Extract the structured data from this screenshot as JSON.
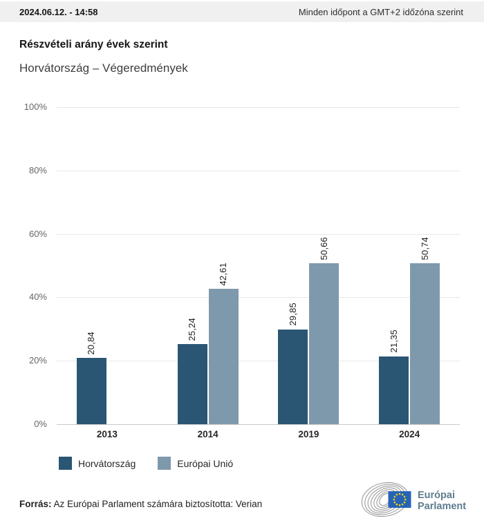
{
  "topbar": {
    "datetime": "2024.06.12. - 14:58",
    "timezone_note": "Minden időpont a GMT+2 időzóna szerint"
  },
  "header": {
    "title": "Részvételi arány évek szerint",
    "subtitle": "Horvátország – Végeredmények"
  },
  "chart_data": {
    "type": "bar",
    "title": "Részvételi arány évek szerint",
    "subtitle": "Horvátország – Végeredmények",
    "categories": [
      "2013",
      "2014",
      "2019",
      "2024"
    ],
    "series": [
      {
        "name": "Horvátország",
        "color": "#2a5674",
        "values": [
          20.84,
          25.24,
          29.85,
          21.35
        ],
        "labels": [
          "20,84",
          "25,24",
          "29,85",
          "21,35"
        ]
      },
      {
        "name": "Európai Unió",
        "color": "#7f99ac",
        "values": [
          null,
          42.61,
          50.66,
          50.74
        ],
        "labels": [
          null,
          "42,61",
          "50,66",
          "50,74"
        ]
      }
    ],
    "xlabel": "",
    "ylabel": "",
    "ylim": [
      0,
      100
    ],
    "yticks": [
      {
        "value": 100,
        "label": "100%"
      },
      {
        "value": 80,
        "label": "80%"
      },
      {
        "value": 60,
        "label": "60%"
      },
      {
        "value": 40,
        "label": "40%"
      },
      {
        "value": 20,
        "label": "20%"
      },
      {
        "value": 0,
        "label": "0%"
      }
    ],
    "grid": true,
    "legend_position": "bottom",
    "value_label_rotation": 90,
    "value_label_decimal_separator": ","
  },
  "footer": {
    "source_label": "Forrás:",
    "source_text": "Az Európai Parlament számára biztosította: Verian",
    "logo_line1": "Európai",
    "logo_line2": "Parlament",
    "logo_colors": {
      "flag_blue": "#2563b8",
      "star_yellow": "#f5d300",
      "arc_gray": "#9b9b9b",
      "text_slate": "#5e7d8e"
    }
  }
}
